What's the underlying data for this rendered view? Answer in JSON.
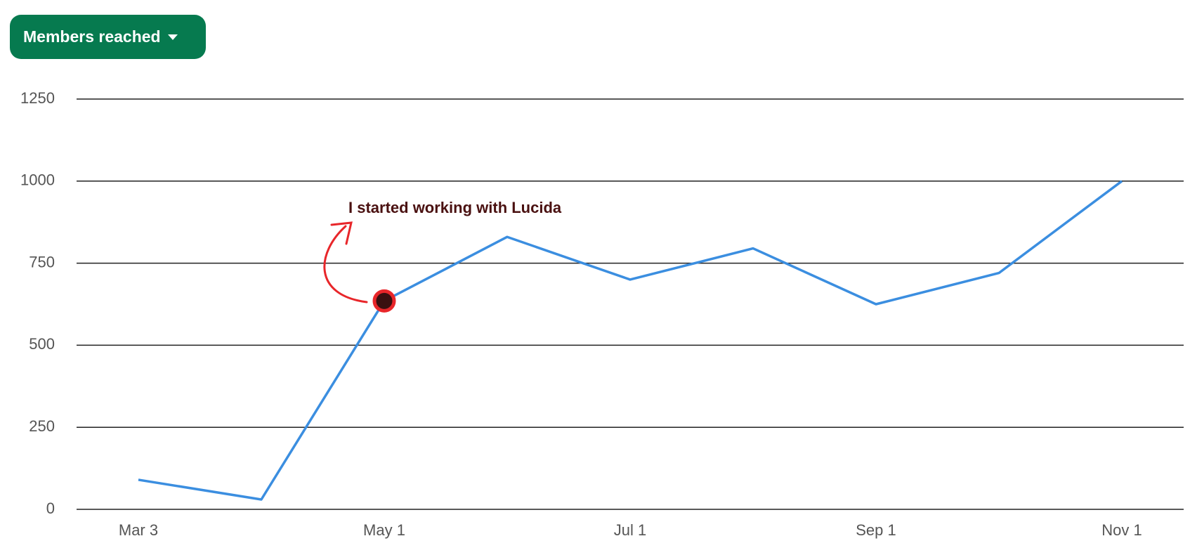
{
  "control": {
    "label": "Members reached"
  },
  "chart_data": {
    "type": "line",
    "annotation": "I started working with Lucida",
    "categories": [
      "Mar 3",
      null,
      "May 1",
      null,
      "Jul 1",
      null,
      "Sep 1",
      null,
      "Nov 1"
    ],
    "series": [
      {
        "name": "Members reached",
        "color": "#3b8ee0",
        "values": [
          90,
          30,
          635,
          830,
          700,
          795,
          625,
          720,
          1000
        ]
      }
    ],
    "ylim": [
      0,
      1250
    ],
    "yticks": [
      0,
      250,
      500,
      750,
      1000,
      1250
    ],
    "grid": true
  }
}
